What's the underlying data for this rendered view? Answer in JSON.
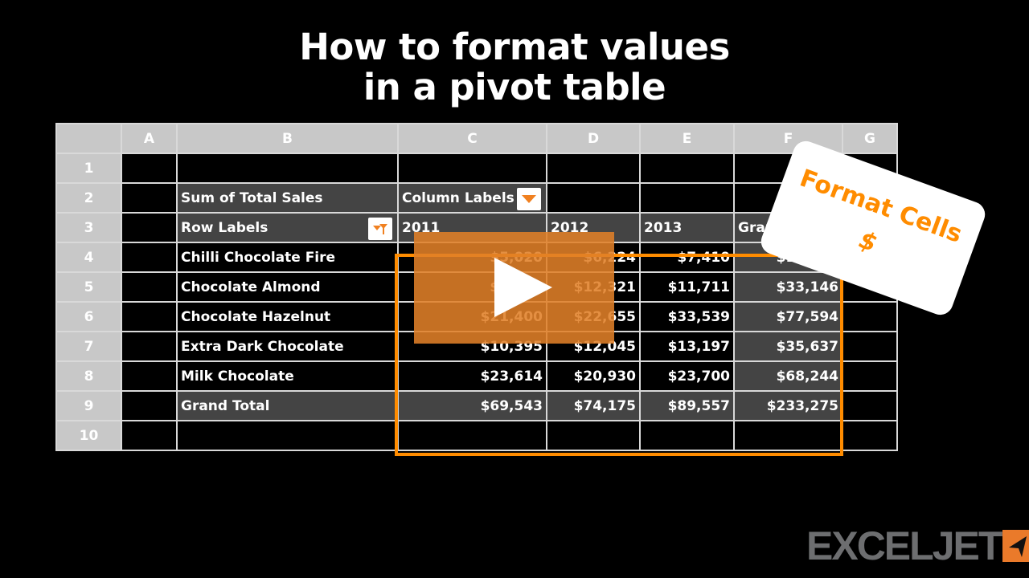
{
  "title": {
    "line1": "How to format values",
    "line2": "in a pivot table"
  },
  "columns": [
    "",
    "A",
    "B",
    "C",
    "D",
    "E",
    "F",
    "G"
  ],
  "rows": [
    {
      "num": "1",
      "cells": [
        "",
        "",
        "",
        "",
        "",
        "",
        ""
      ]
    },
    {
      "num": "2",
      "cells": [
        "",
        "Sum of Total Sales",
        "Column Labels",
        "",
        "",
        "",
        ""
      ]
    },
    {
      "num": "3",
      "cells": [
        "",
        "Row Labels",
        "2011",
        "2012",
        "2013",
        "Grand Total",
        ""
      ]
    },
    {
      "num": "4",
      "cells": [
        "",
        "Chilli Chocolate Fire",
        "$5,020",
        "$6,224",
        "$7,410",
        "$18,654",
        ""
      ]
    },
    {
      "num": "5",
      "cells": [
        "",
        "Chocolate Almond",
        "$9,114",
        "$12,321",
        "$11,711",
        "$33,146",
        ""
      ]
    },
    {
      "num": "6",
      "cells": [
        "",
        "Chocolate Hazelnut",
        "$21,400",
        "$22,655",
        "$33,539",
        "$77,594",
        ""
      ]
    },
    {
      "num": "7",
      "cells": [
        "",
        "Extra Dark Chocolate",
        "$10,395",
        "$12,045",
        "$13,197",
        "$35,637",
        ""
      ]
    },
    {
      "num": "8",
      "cells": [
        "",
        "Milk Chocolate",
        "$23,614",
        "$20,930",
        "$23,700",
        "$68,244",
        ""
      ]
    },
    {
      "num": "9",
      "cells": [
        "",
        "Grand Total",
        "$69,543",
        "$74,175",
        "$89,557",
        "$233,275",
        ""
      ]
    },
    {
      "num": "10",
      "cells": [
        "",
        "",
        "",
        "",
        "",
        "",
        ""
      ]
    }
  ],
  "card": {
    "line1": "Format Cells",
    "line2": "$"
  },
  "logo": {
    "text": "EXCELJET"
  },
  "colors": {
    "accent": "#ff8c00",
    "pivot_dark": "#444444",
    "header_gray": "#c8c8c8"
  },
  "icons": {
    "play": "play-icon",
    "column_filter": "dropdown-arrow-icon",
    "row_filter": "filter-icon"
  }
}
